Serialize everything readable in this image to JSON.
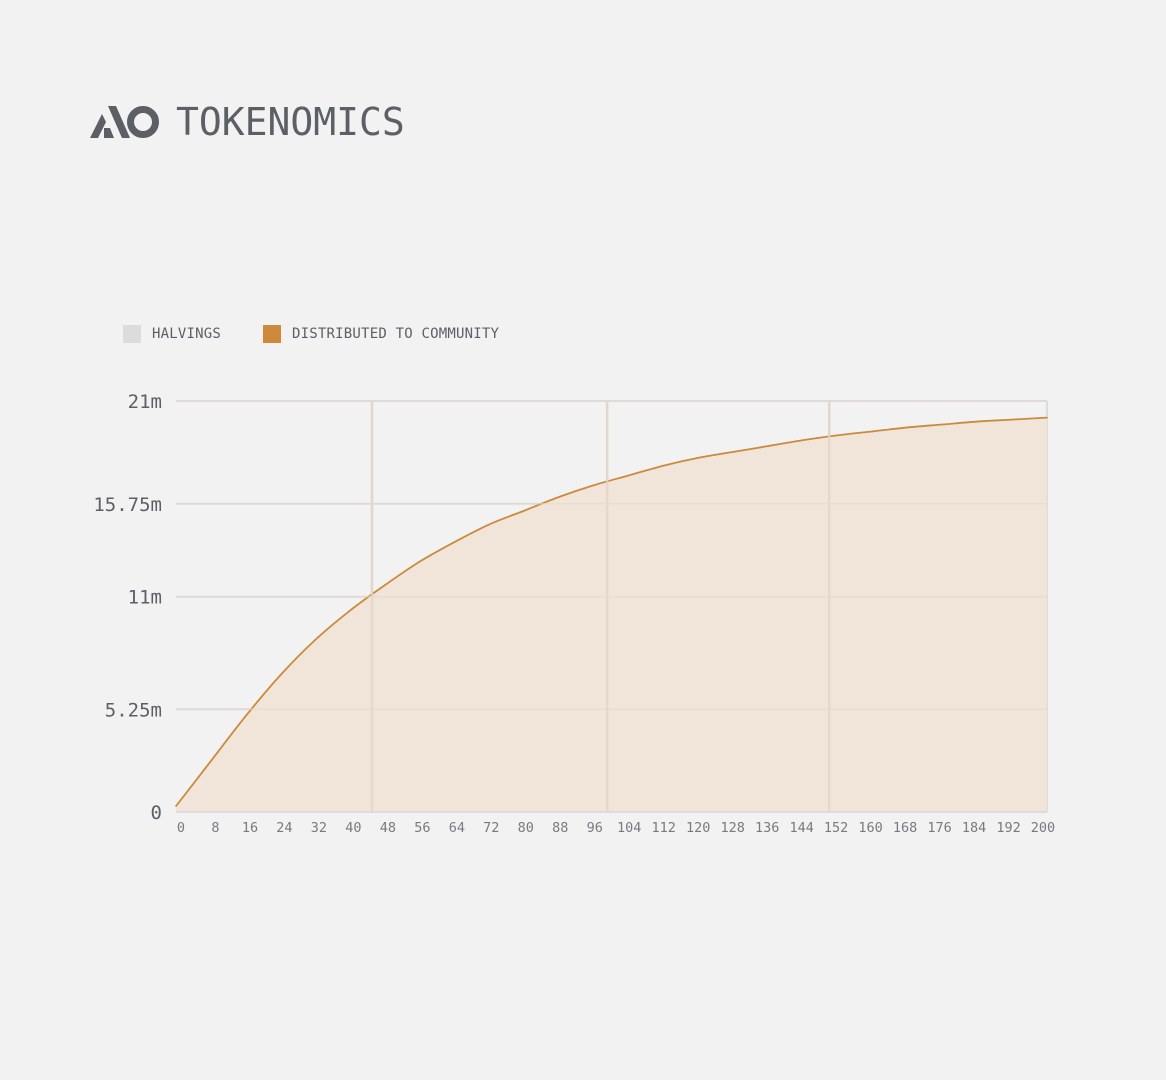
{
  "header": {
    "title": "TOKENOMICS",
    "logo_icon": "ao-logo-icon"
  },
  "colors": {
    "background": "#f2f2f2",
    "text": "#5c5f66",
    "grid": "#dcdcdc",
    "halvings": "#dcdcdc",
    "community_line": "#cc8a3a",
    "community_fill": "#f1e3d6",
    "logo": "#5c5f66"
  },
  "chart_data": {
    "type": "area",
    "legend": [
      {
        "name": "HALVINGS",
        "color": "#dcdcdc"
      },
      {
        "name": "DISTRIBUTED TO COMMUNITY",
        "color": "#cc8a3a"
      }
    ],
    "legend_position": "top-left",
    "x_tick_labels": [
      "0",
      "8",
      "16",
      "24",
      "32",
      "40",
      "48",
      "56",
      "64",
      "72",
      "80",
      "88",
      "96",
      "104",
      "112",
      "120",
      "128",
      "136",
      "144",
      "152",
      "160",
      "168",
      "176",
      "184",
      "192",
      "200"
    ],
    "y_tick_labels": [
      "0",
      "5.25m",
      "11m",
      "15.75m",
      "21m"
    ],
    "y_ticks": [
      0,
      5.25,
      11,
      15.75,
      21
    ],
    "ylim": [
      0,
      21
    ],
    "xlim": [
      0,
      200
    ],
    "grid": true,
    "halvings_x": [
      45,
      99,
      150
    ],
    "series": [
      {
        "name": "DISTRIBUTED TO COMMUNITY",
        "x": [
          0,
          8,
          16,
          24,
          32,
          40,
          48,
          56,
          64,
          72,
          80,
          88,
          96,
          104,
          112,
          120,
          128,
          136,
          144,
          152,
          160,
          168,
          176,
          184,
          192,
          200
        ],
        "values": [
          0.3,
          2.6,
          4.9,
          7.0,
          8.8,
          10.3,
          11.6,
          12.8,
          13.8,
          14.7,
          15.4,
          16.1,
          16.7,
          17.2,
          17.7,
          18.1,
          18.4,
          18.7,
          19.0,
          19.25,
          19.45,
          19.65,
          19.8,
          19.95,
          20.05,
          20.15
        ]
      }
    ]
  }
}
